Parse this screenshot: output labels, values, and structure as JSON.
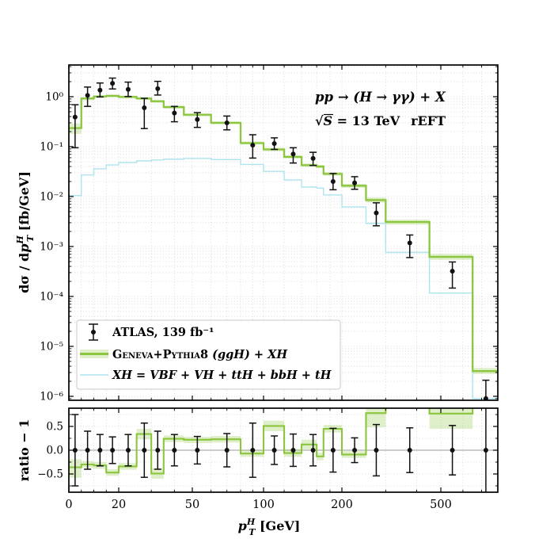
{
  "figure": {
    "annotation_line1": "pp → (H → γγ) + X",
    "annotation_sqrt": "√",
    "annotation_s": "S",
    "annotation_energy": " = 13 TeV",
    "annotation_scheme": "rEFT",
    "ylabel_prefix": "dσ / d",
    "ylabel_p": "p",
    "ylabel_sup": "H",
    "ylabel_sub": "T",
    "ylabel_unit": "  [fb/GeV]",
    "xlabel_p": "p",
    "xlabel_sup": "H",
    "xlabel_sub": "T",
    "xlabel_unit": "  [GeV]",
    "ratio_ylabel": "ratio − 1"
  },
  "legend": {
    "entry_data": "ATLAS, 139 fb⁻¹",
    "entry_geneva_sc": "Geneva+Pythia8",
    "entry_geneva_rest": " (ggH) + XH",
    "entry_xh": "XH = VBF + VH + ttH + bbH + tH"
  },
  "chart_data": {
    "type": "bar",
    "subtype": "step-histogram with data points, log y, custom log-like x",
    "title": "",
    "xlabel": "p_T^H [GeV]",
    "ylabel": "dσ / dp_T^H [fb/GeV]",
    "ratio_label": "ratio − 1",
    "x_tick_labels": [
      "0",
      "20",
      "50",
      "100",
      "200",
      "500"
    ],
    "x_tick_values": [
      0,
      20,
      50,
      100,
      200,
      500
    ],
    "x_minor_ticks": [
      5,
      10,
      15,
      30,
      40,
      60,
      70,
      80,
      90,
      120,
      140,
      160,
      180,
      300,
      400,
      600,
      700
    ],
    "x_range": [
      0,
      800
    ],
    "y_tick_labels": [
      "10⁰",
      "10⁻¹",
      "10⁻²",
      "10⁻³",
      "10⁻⁴",
      "10⁻⁵",
      "10⁻⁶"
    ],
    "y_tick_exponents": [
      0,
      -1,
      -2,
      -3,
      -4,
      -5,
      -6
    ],
    "y_range": [
      8.3e-07,
      4.3
    ],
    "ratio_tick_labels": [
      "0.5",
      "0.0",
      "−0.5"
    ],
    "ratio_tick_values": [
      0.5,
      0.0,
      -0.5
    ],
    "ratio_range": [
      -0.88,
      0.88
    ],
    "grid": true,
    "legend_position": "lower left",
    "bin_edges": [
      0,
      5,
      10,
      15,
      20,
      25,
      30,
      35,
      45,
      60,
      80,
      100,
      120,
      140,
      160,
      170,
      200,
      250,
      300,
      450,
      650,
      800
    ],
    "series": [
      {
        "name": "ATLAS, 139 fb⁻¹",
        "type": "errorbar",
        "color": "#111111",
        "x": [
          2.5,
          7.5,
          12.5,
          17.5,
          22.5,
          27.5,
          32.5,
          40,
          52.5,
          70,
          90,
          110,
          130,
          155,
          185,
          225,
          275,
          375,
          550,
          725
        ],
        "y": [
          0.39,
          1.06,
          1.35,
          1.85,
          1.4,
          0.6,
          1.45,
          0.47,
          0.35,
          0.3,
          0.107,
          0.115,
          0.071,
          0.058,
          0.02,
          0.0188,
          0.0047,
          0.00118,
          0.00032,
          9e-07
        ],
        "y_err_hi": [
          0.69,
          1.56,
          1.88,
          2.36,
          1.96,
          0.93,
          2.03,
          0.64,
          0.48,
          0.41,
          0.173,
          0.15,
          0.095,
          0.077,
          0.029,
          0.025,
          0.0075,
          0.0017,
          0.00049,
          2.1e-06
        ],
        "y_err_lo": [
          0.095,
          0.64,
          0.99,
          1.43,
          1.01,
          0.23,
          1.08,
          0.315,
          0.243,
          0.217,
          0.059,
          0.088,
          0.047,
          0.042,
          0.0137,
          0.014,
          0.0026,
          0.0006,
          0.000147,
          2e-07
        ]
      },
      {
        "name": "Geneva+Pythia8 (ggH) + XH",
        "type": "histogram",
        "color": "#8cc63e",
        "band_color": "#8cc63e",
        "band_opacity": 0.28,
        "values": [
          0.235,
          0.92,
          1.01,
          1.04,
          0.99,
          0.92,
          0.81,
          0.62,
          0.435,
          0.3,
          0.118,
          0.088,
          0.0625,
          0.0425,
          0.04,
          0.0285,
          0.0165,
          0.0085,
          0.0031,
          0.00062,
          3.2e-06
        ],
        "band_lo": [
          0.18,
          0.85,
          0.945,
          0.975,
          0.925,
          0.86,
          0.755,
          0.578,
          0.406,
          0.281,
          0.11,
          0.0815,
          0.0578,
          0.0393,
          0.037,
          0.0262,
          0.015,
          0.0076,
          0.00275,
          0.00054,
          2.8e-06
        ],
        "band_hi": [
          0.29,
          0.975,
          1.065,
          1.1,
          1.05,
          0.975,
          0.862,
          0.66,
          0.462,
          0.318,
          0.127,
          0.0945,
          0.0672,
          0.0457,
          0.043,
          0.0308,
          0.018,
          0.0096,
          0.00345,
          0.00071,
          3.7e-06
        ]
      },
      {
        "name": "XH = VBF + VH + ttH + bbH + tH",
        "type": "histogram",
        "color": "#aee4ef",
        "values": [
          0.0105,
          0.027,
          0.036,
          0.043,
          0.048,
          0.052,
          0.054,
          0.056,
          0.058,
          0.055,
          0.044,
          0.032,
          0.0215,
          0.0155,
          0.0148,
          0.0108,
          0.0062,
          0.0029,
          0.00076,
          0.000117,
          9e-07
        ]
      }
    ],
    "ratio": {
      "description": "GENEVA/ATLAS − 1 per bin; null = above axis range (clipped)",
      "line": [
        -0.36,
        -0.3,
        -0.32,
        -0.47,
        -0.34,
        0.34,
        -0.49,
        0.24,
        0.22,
        0.23,
        -0.07,
        0.51,
        -0.06,
        0.12,
        -0.13,
        0.45,
        -0.09,
        0.78,
        null,
        0.77,
        null
      ],
      "band_lo": [
        -0.58,
        -0.37,
        -0.39,
        -0.54,
        -0.41,
        0.23,
        -0.6,
        0.17,
        0.15,
        0.16,
        -0.14,
        0.4,
        -0.14,
        0.02,
        -0.21,
        0.37,
        -0.16,
        0.48,
        null,
        0.45,
        null
      ],
      "band_hi": [
        -0.19,
        -0.23,
        -0.25,
        -0.4,
        -0.27,
        0.45,
        -0.38,
        0.31,
        0.28,
        0.3,
        0.0,
        0.62,
        0.02,
        0.22,
        -0.05,
        0.53,
        -0.02,
        0.88,
        null,
        0.88,
        null
      ],
      "points_x": [
        2.5,
        7.5,
        12.5,
        17.5,
        22.5,
        27.5,
        32.5,
        40,
        52.5,
        70,
        90,
        110,
        130,
        155,
        185,
        225,
        275,
        375,
        550,
        725
      ],
      "points_y": [
        0,
        0,
        0,
        0,
        0,
        0,
        0,
        0,
        0,
        0,
        0,
        0,
        0,
        0,
        0,
        0,
        0,
        0,
        0,
        0
      ],
      "points_err": [
        0.75,
        0.4,
        0.33,
        0.28,
        0.33,
        0.57,
        0.4,
        0.33,
        0.29,
        0.35,
        0.57,
        0.3,
        0.34,
        0.33,
        0.46,
        0.26,
        0.54,
        0.47,
        0.52,
        1.2
      ]
    }
  }
}
